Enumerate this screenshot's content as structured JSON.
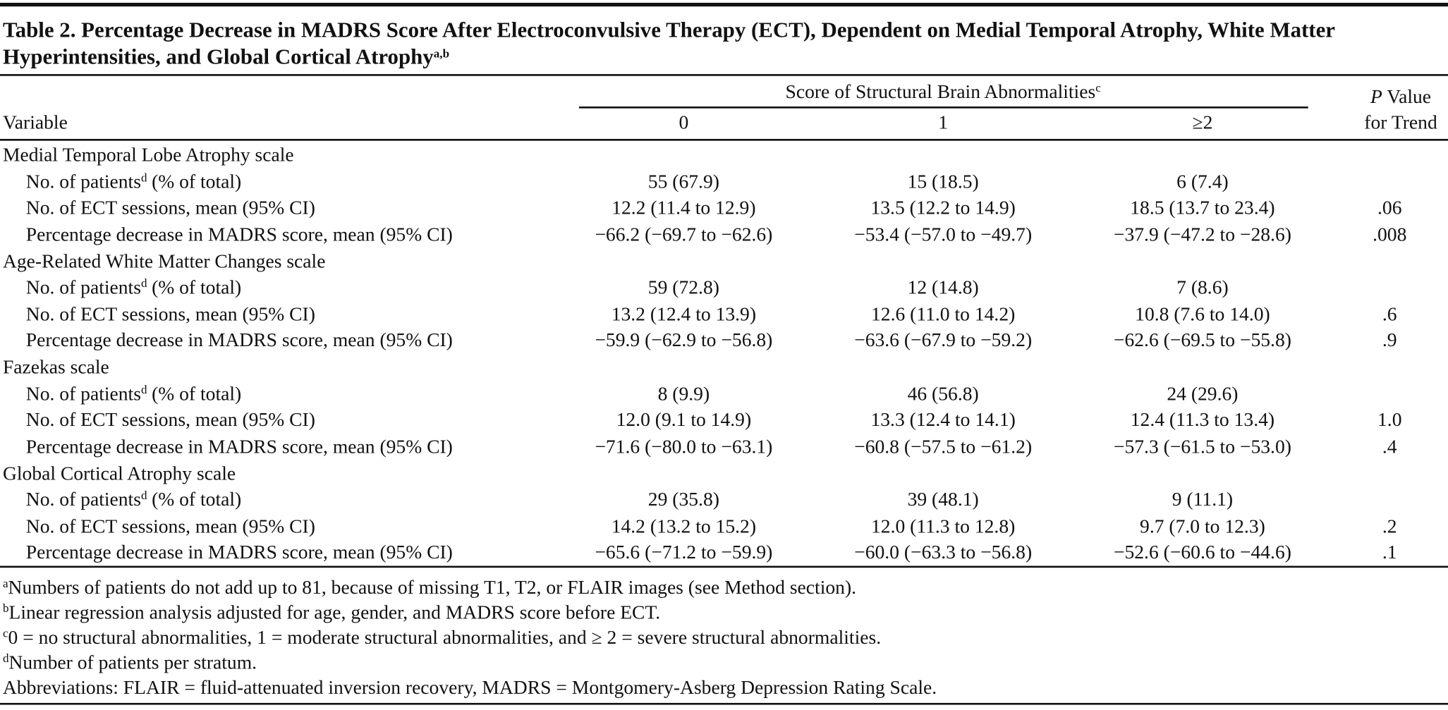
{
  "title": {
    "text": "Table 2. Percentage Decrease in MADRS Score After Electroconvulsive Therapy (ECT), Dependent on Medial Temporal Atrophy, White Matter Hyperintensities, and Global Cortical Atrophy",
    "sup": "a,b"
  },
  "header": {
    "variable": "Variable",
    "group": {
      "text": "Score of Structural Brain Abnormalities",
      "sup": "c"
    },
    "columns": [
      "0",
      "1",
      "≥2"
    ],
    "p_value": {
      "italic": "P",
      "text": "Value",
      "line2": "for Trend"
    }
  },
  "sections": [
    {
      "name": "Medial Temporal Lobe Atrophy scale",
      "rows": [
        {
          "label": "No. of patients",
          "label_sup": "d",
          "label_rest": "(% of total)",
          "cells": [
            "55 (67.9)",
            "15 (18.5)",
            "6 (7.4)"
          ]
        },
        {
          "label": "No. of ECT sessions, mean (95% CI)",
          "cells": [
            "12.2 (11.4 to 12.9)",
            "13.5 (12.2 to 14.9)",
            "18.5 (13.7 to 23.4)"
          ],
          "p": ".06"
        },
        {
          "label": "Percentage decrease in MADRS score, mean (95% CI)",
          "cells": [
            "−66.2 (−69.7 to −62.6)",
            "−53.4 (−57.0 to −49.7)",
            "−37.9 (−47.2 to −28.6)"
          ],
          "p": ".008"
        }
      ]
    },
    {
      "name": "Age-Related White Matter Changes scale",
      "rows": [
        {
          "label": "No. of patients",
          "label_sup": "d",
          "label_rest": "(% of total)",
          "cells": [
            "59 (72.8)",
            "12 (14.8)",
            "7 (8.6)"
          ]
        },
        {
          "label": "No. of ECT sessions, mean (95% CI)",
          "cells": [
            "13.2 (12.4 to 13.9)",
            "12.6 (11.0 to 14.2)",
            "10.8 (7.6 to 14.0)"
          ],
          "p": ".6"
        },
        {
          "label": "Percentage decrease in MADRS score, mean (95% CI)",
          "cells": [
            "−59.9 (−62.9 to −56.8)",
            "−63.6 (−67.9 to −59.2)",
            "−62.6 (−69.5 to −55.8)"
          ],
          "p": ".9"
        }
      ]
    },
    {
      "name": "Fazekas scale",
      "rows": [
        {
          "label": "No. of patients",
          "label_sup": "d",
          "label_rest": "(% of total)",
          "cells": [
            "8 (9.9)",
            "46 (56.8)",
            "24 (29.6)"
          ]
        },
        {
          "label": "No. of ECT sessions, mean (95% CI)",
          "cells": [
            "12.0 (9.1 to 14.9)",
            "13.3 (12.4 to 14.1)",
            "12.4 (11.3 to 13.4)"
          ],
          "p": "1.0"
        },
        {
          "label": "Percentage decrease in MADRS score, mean (95% CI)",
          "cells": [
            "−71.6 (−80.0 to −63.1)",
            "−60.8 (−57.5 to −61.2)",
            "−57.3 (−61.5 to −53.0)"
          ],
          "p": ".4"
        }
      ]
    },
    {
      "name": "Global Cortical Atrophy scale",
      "rows": [
        {
          "label": "No. of patients",
          "label_sup": "d",
          "label_rest": "(% of total)",
          "cells": [
            "29 (35.8)",
            "39 (48.1)",
            "9 (11.1)"
          ]
        },
        {
          "label": "No. of ECT sessions, mean (95% CI)",
          "cells": [
            "14.2 (13.2 to 15.2)",
            "12.0 (11.3 to 12.8)",
            "9.7 (7.0 to 12.3)"
          ],
          "p": ".2"
        },
        {
          "label": "Percentage decrease in MADRS score, mean (95% CI)",
          "cells": [
            "−65.6 (−71.2 to −59.9)",
            "−60.0 (−63.3 to −56.8)",
            "−52.6 (−60.6 to −44.6)"
          ],
          "p": ".1"
        }
      ]
    }
  ],
  "footnotes": [
    {
      "mark": "a",
      "text": "Numbers of patients do not add up to 81, because of missing T1, T2, or FLAIR images (see Method section)."
    },
    {
      "mark": "b",
      "text": "Linear regression analysis adjusted for age, gender, and MADRS score before ECT."
    },
    {
      "mark": "c",
      "text": "0 = no structural abnormalities, 1 = moderate structural abnormalities, and ≥ 2 = severe structural abnormalities."
    },
    {
      "mark": "d",
      "text": "Number of patients per stratum."
    },
    {
      "text": "Abbreviations: FLAIR = fluid-attenuated inversion recovery, MADRS = Montgomery-Asberg Depression Rating Scale."
    }
  ]
}
